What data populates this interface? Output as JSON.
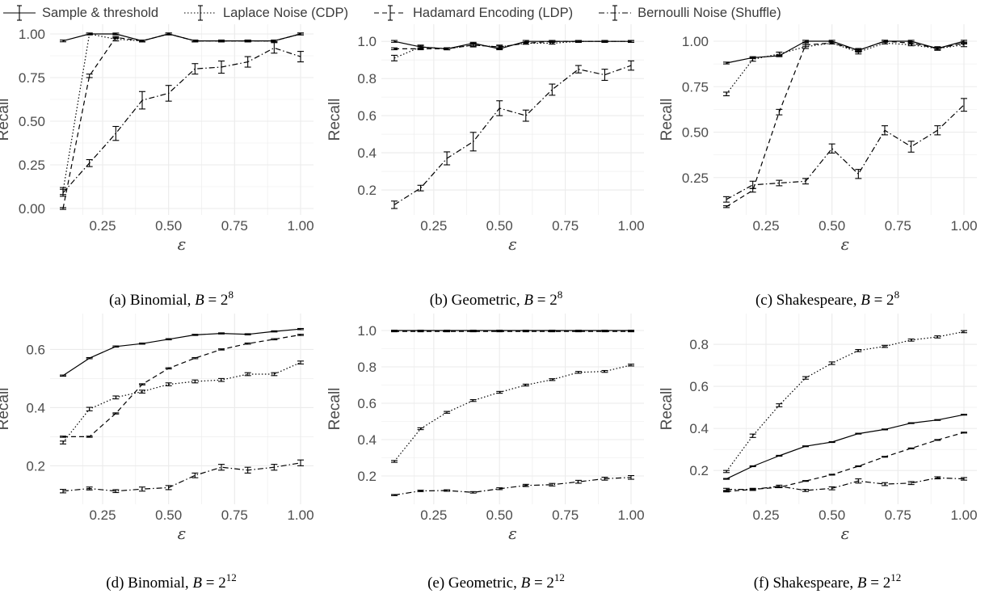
{
  "legend": {
    "entries": [
      {
        "label": "Sample & threshold",
        "dash": ""
      },
      {
        "label": "Laplace Noise (CDP)",
        "dash": "1.5,2.5"
      },
      {
        "label": "Hadamard Encoding (LDP)",
        "dash": "6,4"
      },
      {
        "label": "Bernoulli Noise (Shuffle)",
        "dash": "7,3,1.5,3"
      }
    ]
  },
  "colors": {
    "line": "#000000",
    "grid": "#ebebeb",
    "tick_text": "#4d4d4d"
  },
  "chart_data": [
    {
      "type": "line",
      "caption": "(a) Binomial, B = 2^8",
      "caption_prefix": "(a) Binomial, ",
      "caption_var": "B",
      "caption_base": " = 2",
      "caption_exp": "8",
      "xlabel": "ε",
      "ylabel": "Recall",
      "xlim": [
        0.1,
        1.0
      ],
      "ylim": [
        0.0,
        1.0
      ],
      "xticks": [
        0.25,
        0.5,
        0.75,
        1.0
      ],
      "xtick_labels": [
        "0.25",
        "0.50",
        "0.75",
        "1.00"
      ],
      "yticks": [
        0,
        0.25,
        0.5,
        0.75,
        1.0
      ],
      "ytick_labels": [
        "0.00",
        "0.25",
        "0.50",
        "0.75",
        "1.00"
      ],
      "grid": true,
      "x": [
        0.1,
        0.2,
        0.3,
        0.4,
        0.5,
        0.6,
        0.7,
        0.8,
        0.9,
        1.0
      ],
      "series": [
        {
          "name": "Sample & threshold",
          "values": [
            0.96,
            1.0,
            1.0,
            0.96,
            1.0,
            0.96,
            0.96,
            0.96,
            0.96,
            1.0
          ],
          "err": [
            0.005,
            0.005,
            0.005,
            0.005,
            0.005,
            0.005,
            0.005,
            0.005,
            0.005,
            0.005
          ]
        },
        {
          "name": "Laplace Noise (CDP)",
          "values": [
            0.1,
            1.0,
            0.97,
            0.96,
            1.0,
            0.96,
            0.96,
            0.96,
            0.96,
            1.0
          ],
          "err": [
            0.02,
            0.005,
            0.01,
            0.005,
            0.005,
            0.005,
            0.005,
            0.005,
            0.005,
            0.005
          ]
        },
        {
          "name": "Hadamard Encoding (LDP)",
          "values": [
            0.0,
            0.76,
            0.98,
            0.96,
            1.0,
            0.96,
            0.96,
            0.96,
            0.96,
            1.0
          ],
          "err": [
            0.005,
            0.01,
            0.005,
            0.005,
            0.005,
            0.005,
            0.005,
            0.005,
            0.005,
            0.005
          ]
        },
        {
          "name": "Bernoulli Noise (Shuffle)",
          "values": [
            0.09,
            0.26,
            0.43,
            0.62,
            0.66,
            0.8,
            0.81,
            0.84,
            0.92,
            0.87
          ],
          "err": [
            0.02,
            0.02,
            0.04,
            0.05,
            0.045,
            0.03,
            0.035,
            0.03,
            0.03,
            0.03
          ]
        }
      ]
    },
    {
      "type": "line",
      "caption": "(b) Geometric, B = 2^8",
      "caption_prefix": "(b) Geometric, ",
      "caption_var": "B",
      "caption_base": " = 2",
      "caption_exp": "8",
      "xlabel": "ε",
      "ylabel": "Recall",
      "xlim": [
        0.1,
        1.0
      ],
      "ylim": [
        0.1,
        1.04
      ],
      "xticks": [
        0.25,
        0.5,
        0.75,
        1.0
      ],
      "xtick_labels": [
        "0.25",
        "0.50",
        "0.75",
        "1.00"
      ],
      "yticks": [
        0.2,
        0.4,
        0.6,
        0.8,
        1.0
      ],
      "ytick_labels": [
        "0.2",
        "0.4",
        "0.6",
        "0.8",
        "1.0"
      ],
      "grid": true,
      "x": [
        0.1,
        0.2,
        0.3,
        0.4,
        0.5,
        0.6,
        0.7,
        0.8,
        0.9,
        1.0
      ],
      "series": [
        {
          "name": "Sample & threshold",
          "values": [
            1.0,
            0.97,
            0.96,
            0.99,
            0.96,
            1.0,
            1.0,
            1.0,
            1.0,
            1.0
          ],
          "err": [
            0.005,
            0.005,
            0.005,
            0.005,
            0.005,
            0.005,
            0.005,
            0.005,
            0.005,
            0.005
          ]
        },
        {
          "name": "Laplace Noise (CDP)",
          "values": [
            0.91,
            0.97,
            0.96,
            0.98,
            0.97,
            0.99,
            0.99,
            1.0,
            1.0,
            1.0
          ],
          "err": [
            0.015,
            0.01,
            0.005,
            0.01,
            0.01,
            0.005,
            0.005,
            0.005,
            0.005,
            0.005
          ]
        },
        {
          "name": "Hadamard Encoding (LDP)",
          "values": [
            0.96,
            0.96,
            0.96,
            0.98,
            0.97,
            0.99,
            1.0,
            1.0,
            1.0,
            1.0
          ],
          "err": [
            0.005,
            0.005,
            0.005,
            0.005,
            0.005,
            0.005,
            0.005,
            0.005,
            0.005,
            0.005
          ]
        },
        {
          "name": "Bernoulli Noise (Shuffle)",
          "values": [
            0.12,
            0.21,
            0.37,
            0.46,
            0.64,
            0.6,
            0.74,
            0.85,
            0.82,
            0.87
          ],
          "err": [
            0.02,
            0.015,
            0.035,
            0.05,
            0.04,
            0.03,
            0.03,
            0.02,
            0.03,
            0.025
          ]
        }
      ]
    },
    {
      "type": "line",
      "caption": "(c) Shakespeare, B = 2^8",
      "caption_prefix": "(c) Shakespeare, ",
      "caption_var": "B",
      "caption_base": " = 2",
      "caption_exp": "8",
      "xlabel": "ε",
      "ylabel": "Recall",
      "xlim": [
        0.1,
        1.0
      ],
      "ylim": [
        0.08,
        1.04
      ],
      "xticks": [
        0.25,
        0.5,
        0.75,
        1.0
      ],
      "xtick_labels": [
        "0.25",
        "0.50",
        "0.75",
        "1.00"
      ],
      "yticks": [
        0.25,
        0.5,
        0.75,
        1.0
      ],
      "ytick_labels": [
        "0.25",
        "0.50",
        "0.75",
        "1.00"
      ],
      "grid": true,
      "x": [
        0.1,
        0.2,
        0.3,
        0.4,
        0.5,
        0.6,
        0.7,
        0.8,
        0.9,
        1.0
      ],
      "series": [
        {
          "name": "Sample & threshold",
          "values": [
            0.88,
            0.91,
            0.92,
            1.0,
            1.0,
            0.95,
            1.0,
            1.0,
            0.96,
            1.0
          ],
          "err": [
            0.005,
            0.005,
            0.005,
            0.005,
            0.005,
            0.005,
            0.005,
            0.005,
            0.005,
            0.005
          ]
        },
        {
          "name": "Laplace Noise (CDP)",
          "values": [
            0.71,
            0.9,
            0.93,
            0.97,
            0.99,
            0.94,
            0.99,
            0.98,
            0.96,
            0.98
          ],
          "err": [
            0.01,
            0.01,
            0.01,
            0.01,
            0.005,
            0.01,
            0.005,
            0.005,
            0.01,
            0.01
          ]
        },
        {
          "name": "Hadamard Encoding (LDP)",
          "values": [
            0.09,
            0.18,
            0.61,
            0.98,
            0.99,
            0.95,
            1.0,
            0.99,
            0.96,
            0.99
          ],
          "err": [
            0.005,
            0.01,
            0.015,
            0.01,
            0.005,
            0.01,
            0.005,
            0.005,
            0.005,
            0.005
          ]
        },
        {
          "name": "Bernoulli Noise (Shuffle)",
          "values": [
            0.13,
            0.21,
            0.22,
            0.23,
            0.41,
            0.27,
            0.51,
            0.42,
            0.51,
            0.65
          ],
          "err": [
            0.015,
            0.02,
            0.015,
            0.015,
            0.025,
            0.025,
            0.025,
            0.03,
            0.025,
            0.035
          ]
        }
      ]
    },
    {
      "type": "line",
      "caption": "(d) Binomial, B = 2^12",
      "caption_prefix": "(d) Binomial, ",
      "caption_var": "B",
      "caption_base": " = 2",
      "caption_exp": "12",
      "xlabel": "ε",
      "ylabel": "Recall",
      "xlim": [
        0.1,
        1.0
      ],
      "ylim": [
        0.09,
        0.69
      ],
      "xticks": [
        0.25,
        0.5,
        0.75,
        1.0
      ],
      "xtick_labels": [
        "0.25",
        "0.50",
        "0.75",
        "1.00"
      ],
      "yticks": [
        0.2,
        0.4,
        0.6
      ],
      "ytick_labels": [
        "0.2",
        "0.4",
        "0.6"
      ],
      "grid": true,
      "x": [
        0.1,
        0.2,
        0.3,
        0.4,
        0.5,
        0.6,
        0.7,
        0.8,
        0.9,
        1.0
      ],
      "series": [
        {
          "name": "Sample & threshold",
          "values": [
            0.51,
            0.57,
            0.61,
            0.62,
            0.635,
            0.65,
            0.655,
            0.652,
            0.662,
            0.67
          ],
          "err": [
            0.002,
            0.002,
            0.002,
            0.002,
            0.002,
            0.002,
            0.002,
            0.002,
            0.002,
            0.002
          ]
        },
        {
          "name": "Laplace Noise (CDP)",
          "values": [
            0.28,
            0.395,
            0.435,
            0.455,
            0.48,
            0.49,
            0.495,
            0.515,
            0.515,
            0.555
          ],
          "err": [
            0.005,
            0.006,
            0.005,
            0.005,
            0.005,
            0.005,
            0.005,
            0.005,
            0.005,
            0.005
          ]
        },
        {
          "name": "Hadamard Encoding (LDP)",
          "values": [
            0.3,
            0.3,
            0.38,
            0.48,
            0.535,
            0.57,
            0.6,
            0.62,
            0.635,
            0.65
          ],
          "err": [
            0.002,
            0.002,
            0.002,
            0.002,
            0.002,
            0.002,
            0.002,
            0.002,
            0.002,
            0.002
          ]
        },
        {
          "name": "Bernoulli Noise (Shuffle)",
          "values": [
            0.113,
            0.122,
            0.113,
            0.12,
            0.125,
            0.167,
            0.195,
            0.185,
            0.195,
            0.21
          ],
          "err": [
            0.006,
            0.005,
            0.005,
            0.007,
            0.007,
            0.008,
            0.01,
            0.01,
            0.01,
            0.01
          ]
        }
      ]
    },
    {
      "type": "line",
      "caption": "(e) Geometric, B = 2^12",
      "caption_prefix": "(e) Geometric, ",
      "caption_var": "B",
      "caption_base": " = 2",
      "caption_exp": "12",
      "xlabel": "ε",
      "ylabel": "Recall",
      "xlim": [
        0.1,
        1.0
      ],
      "ylim": [
        0.08,
        1.04
      ],
      "xticks": [
        0.25,
        0.5,
        0.75,
        1.0
      ],
      "xtick_labels": [
        "0.25",
        "0.50",
        "0.75",
        "1.00"
      ],
      "yticks": [
        0.2,
        0.4,
        0.6,
        0.8,
        1.0
      ],
      "ytick_labels": [
        "0.2",
        "0.4",
        "0.6",
        "0.8",
        "1.0"
      ],
      "grid": true,
      "x": [
        0.1,
        0.2,
        0.3,
        0.4,
        0.5,
        0.6,
        0.7,
        0.8,
        0.9,
        1.0
      ],
      "series": [
        {
          "name": "Sample & threshold",
          "values": [
            1.0,
            1.0,
            1.0,
            1.0,
            1.0,
            1.0,
            1.0,
            1.0,
            1.0,
            1.0
          ],
          "err": [
            0.002,
            0.002,
            0.002,
            0.002,
            0.002,
            0.002,
            0.002,
            0.002,
            0.002,
            0.002
          ]
        },
        {
          "name": "Laplace Noise (CDP)",
          "values": [
            0.28,
            0.46,
            0.55,
            0.615,
            0.66,
            0.7,
            0.73,
            0.77,
            0.775,
            0.81
          ],
          "err": [
            0.005,
            0.005,
            0.005,
            0.005,
            0.005,
            0.005,
            0.005,
            0.005,
            0.005,
            0.005
          ]
        },
        {
          "name": "Hadamard Encoding (LDP)",
          "values": [
            0.995,
            0.995,
            0.995,
            0.995,
            0.995,
            0.995,
            0.995,
            0.995,
            0.995,
            0.995
          ],
          "err": [
            0.002,
            0.002,
            0.002,
            0.002,
            0.002,
            0.002,
            0.002,
            0.002,
            0.002,
            0.002
          ]
        },
        {
          "name": "Bernoulli Noise (Shuffle)",
          "values": [
            0.095,
            0.118,
            0.12,
            0.11,
            0.13,
            0.148,
            0.152,
            0.168,
            0.185,
            0.192
          ],
          "err": [
            0.003,
            0.004,
            0.004,
            0.004,
            0.005,
            0.006,
            0.007,
            0.008,
            0.008,
            0.01
          ]
        }
      ]
    },
    {
      "type": "line",
      "caption": "(f) Shakespeare, B = 2^12",
      "caption_prefix": "(f) Shakespeare, ",
      "caption_var": "B",
      "caption_base": " = 2",
      "caption_exp": "12",
      "xlabel": "ε",
      "ylabel": "Recall",
      "xlim": [
        0.1,
        1.0
      ],
      "ylim": [
        0.07,
        0.9
      ],
      "xticks": [
        0.25,
        0.5,
        0.75,
        1.0
      ],
      "xtick_labels": [
        "0.25",
        "0.50",
        "0.75",
        "1.00"
      ],
      "yticks": [
        0.2,
        0.4,
        0.6,
        0.8
      ],
      "ytick_labels": [
        "0.2",
        "0.4",
        "0.6",
        "0.8"
      ],
      "grid": true,
      "x": [
        0.1,
        0.2,
        0.3,
        0.4,
        0.5,
        0.6,
        0.7,
        0.8,
        0.9,
        1.0
      ],
      "series": [
        {
          "name": "Sample & threshold",
          "values": [
            0.16,
            0.22,
            0.27,
            0.315,
            0.335,
            0.375,
            0.395,
            0.425,
            0.44,
            0.465
          ],
          "err": [
            0.002,
            0.002,
            0.002,
            0.002,
            0.002,
            0.002,
            0.002,
            0.002,
            0.002,
            0.002
          ]
        },
        {
          "name": "Laplace Noise (CDP)",
          "values": [
            0.195,
            0.365,
            0.51,
            0.64,
            0.71,
            0.77,
            0.79,
            0.82,
            0.835,
            0.86
          ],
          "err": [
            0.005,
            0.008,
            0.007,
            0.006,
            0.006,
            0.005,
            0.005,
            0.005,
            0.005,
            0.005
          ]
        },
        {
          "name": "Hadamard Encoding (LDP)",
          "values": [
            0.1,
            0.11,
            0.12,
            0.15,
            0.18,
            0.22,
            0.265,
            0.305,
            0.345,
            0.38
          ],
          "err": [
            0.002,
            0.002,
            0.002,
            0.002,
            0.002,
            0.002,
            0.002,
            0.002,
            0.002,
            0.002
          ]
        },
        {
          "name": "Bernoulli Noise (Shuffle)",
          "values": [
            0.11,
            0.11,
            0.125,
            0.105,
            0.115,
            0.15,
            0.135,
            0.14,
            0.165,
            0.16
          ],
          "err": [
            0.005,
            0.005,
            0.005,
            0.005,
            0.007,
            0.01,
            0.007,
            0.007,
            0.005,
            0.006
          ]
        }
      ]
    }
  ]
}
